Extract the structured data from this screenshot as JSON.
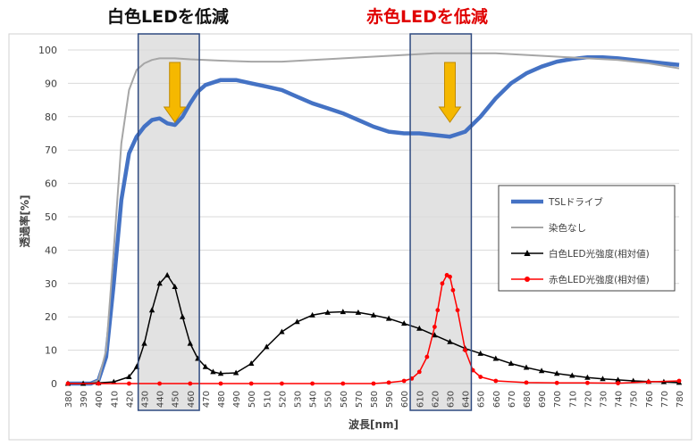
{
  "annotations": {
    "white_led": "白色LEDを低減",
    "red_led": "赤色LEDを低減"
  },
  "chart_data": {
    "type": "line",
    "xlabel": "波長[nm]",
    "ylabel": "透過率[%]",
    "xlim": [
      380,
      780
    ],
    "ylim": [
      0,
      100
    ],
    "x_ticks": [
      380,
      390,
      400,
      410,
      420,
      430,
      440,
      450,
      460,
      470,
      480,
      490,
      500,
      510,
      520,
      530,
      540,
      550,
      560,
      570,
      580,
      590,
      600,
      610,
      620,
      630,
      640,
      650,
      660,
      670,
      680,
      690,
      700,
      710,
      720,
      730,
      740,
      750,
      760,
      770,
      780
    ],
    "y_ticks": [
      0,
      10,
      20,
      30,
      40,
      50,
      60,
      70,
      80,
      90,
      100
    ],
    "grid": "horizontal",
    "legend_position": "right",
    "highlight_bands": [
      {
        "from": 426,
        "to": 466
      },
      {
        "from": 604,
        "to": 644
      }
    ],
    "arrows_at_x": [
      450,
      630
    ],
    "series": [
      {
        "name": "TSLドライブ",
        "color": "#4472c4",
        "marker": "none",
        "x": [
          380,
          390,
          395,
          400,
          405,
          410,
          415,
          420,
          425,
          430,
          435,
          440,
          445,
          450,
          455,
          460,
          465,
          470,
          480,
          490,
          500,
          510,
          520,
          530,
          540,
          550,
          560,
          570,
          580,
          590,
          600,
          610,
          620,
          630,
          640,
          650,
          660,
          670,
          680,
          690,
          700,
          710,
          720,
          730,
          740,
          750,
          760,
          770,
          780
        ],
        "y": [
          0,
          0,
          0,
          1,
          8,
          30,
          55,
          69,
          74,
          77,
          79,
          79.5,
          78,
          77.5,
          80,
          84,
          87.5,
          89.5,
          91,
          91,
          90,
          89,
          88,
          86,
          84,
          82.5,
          81,
          79,
          77,
          75.5,
          75,
          75,
          74.5,
          74,
          75.5,
          80,
          85.5,
          90,
          93,
          95,
          96.5,
          97.3,
          97.8,
          97.8,
          97.5,
          97,
          96.5,
          96,
          95.5
        ]
      },
      {
        "name": "染色なし",
        "color": "#a6a6a6",
        "marker": "none",
        "x": [
          380,
          390,
          395,
          400,
          405,
          410,
          415,
          420,
          425,
          430,
          435,
          440,
          450,
          460,
          470,
          480,
          500,
          520,
          540,
          560,
          580,
          600,
          620,
          640,
          660,
          680,
          700,
          720,
          740,
          760,
          780
        ],
        "y": [
          0,
          0,
          0,
          1,
          10,
          40,
          72,
          88,
          94,
          96,
          97,
          97.5,
          97.5,
          97.2,
          97,
          96.8,
          96.5,
          96.5,
          97,
          97.5,
          98,
          98.5,
          99,
          99,
          99,
          98.5,
          98,
          97.5,
          97,
          96,
          94.5
        ]
      },
      {
        "name": "白色LED光強度(相対値)",
        "color": "#000000",
        "marker": "triangle",
        "x": [
          380,
          390,
          400,
          410,
          420,
          425,
          430,
          435,
          440,
          445,
          450,
          455,
          460,
          465,
          470,
          475,
          480,
          490,
          500,
          510,
          520,
          530,
          540,
          550,
          560,
          570,
          580,
          590,
          600,
          610,
          620,
          630,
          640,
          650,
          660,
          670,
          680,
          690,
          700,
          710,
          720,
          730,
          740,
          750,
          760,
          770,
          780
        ],
        "y": [
          0,
          0,
          0.2,
          0.5,
          2,
          5,
          12,
          22,
          30,
          32.5,
          29,
          20,
          12,
          7.5,
          5,
          3.5,
          3,
          3.2,
          6,
          11,
          15.5,
          18.5,
          20.5,
          21.3,
          21.5,
          21.3,
          20.5,
          19.5,
          18,
          16.5,
          14.5,
          12.5,
          10.5,
          9,
          7.5,
          6,
          4.8,
          3.8,
          3,
          2.4,
          1.8,
          1.4,
          1.1,
          0.8,
          0.6,
          0.5,
          0.3
        ]
      },
      {
        "name": "赤色LED光強度(相対値)",
        "color": "#ff0000",
        "marker": "circle",
        "x": [
          380,
          400,
          420,
          440,
          460,
          480,
          500,
          520,
          540,
          560,
          580,
          590,
          600,
          605,
          610,
          615,
          620,
          622,
          625,
          628,
          630,
          632,
          635,
          640,
          645,
          650,
          660,
          680,
          700,
          720,
          740,
          760,
          780
        ],
        "y": [
          0,
          0,
          0,
          0,
          0,
          0,
          0,
          0,
          0,
          0,
          0,
          0.3,
          0.8,
          1.5,
          3.5,
          8,
          17,
          22,
          30,
          32.5,
          32,
          28,
          22,
          10,
          4,
          2,
          0.8,
          0.3,
          0.2,
          0.2,
          0.1,
          0.5,
          0.8
        ]
      }
    ]
  }
}
